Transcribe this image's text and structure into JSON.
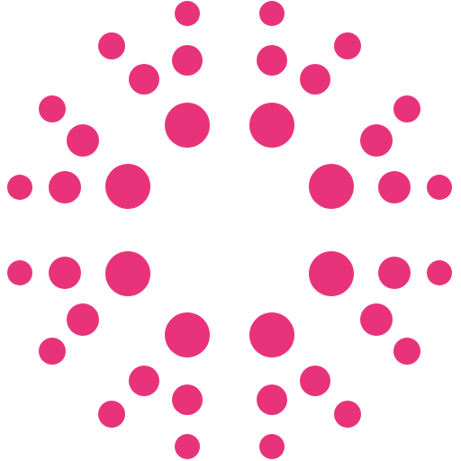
{
  "logo": {
    "icon": "radial-dots-logo-icon",
    "accent_color": "#E8337B",
    "background_color": "#FFFFFF",
    "dots_per_cluster": 10,
    "cluster_count": 4
  }
}
